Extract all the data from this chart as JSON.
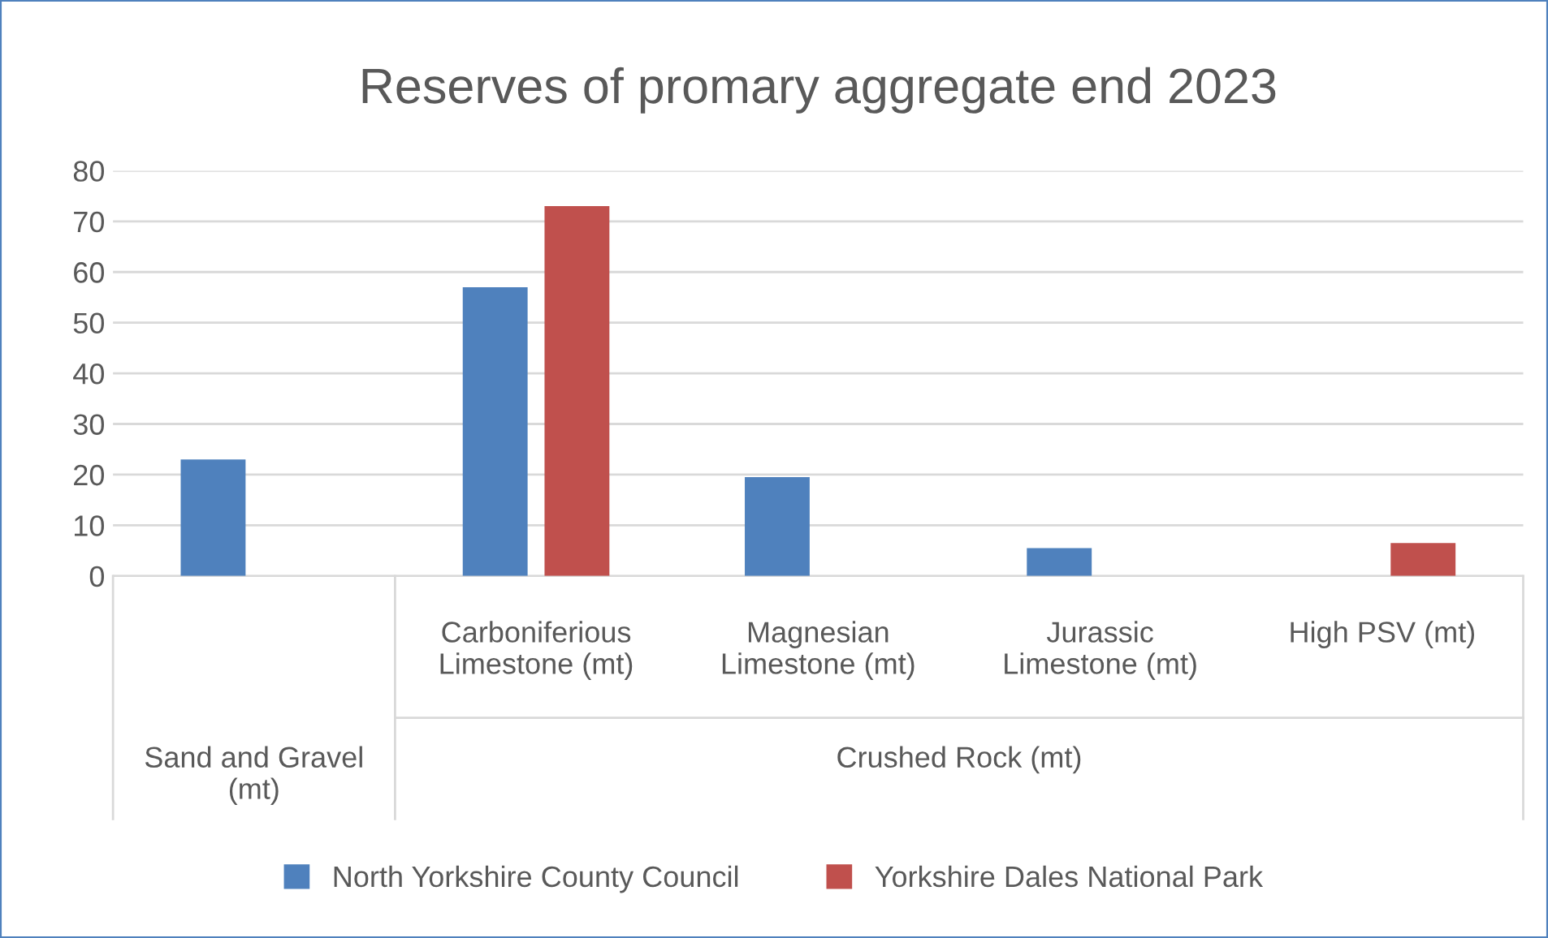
{
  "chart_data": {
    "type": "bar",
    "title": "Reserves of promary aggregate end 2023",
    "categories": [
      null,
      "Carboniferious Limestone (mt)",
      "Magnesian Limestone (mt)",
      "Jurassic Limestone (mt)",
      "High PSV (mt)"
    ],
    "series": [
      {
        "name": "North Yorkshire County Council",
        "color": "#4f81bd",
        "values": [
          23,
          57,
          19.5,
          5.5,
          null
        ]
      },
      {
        "name": "Yorkshire Dales National Park",
        "color": "#c0504d",
        "values": [
          null,
          73,
          null,
          null,
          6.5
        ]
      }
    ],
    "annotations": [
      "Sand and Gravel (mt)",
      "Crushed Rock (mt)"
    ],
    "ylim": [
      0,
      80
    ],
    "yticks": [
      0,
      10,
      20,
      30,
      40,
      50,
      60,
      70,
      80
    ],
    "grid": "y",
    "legend": "bottom"
  }
}
